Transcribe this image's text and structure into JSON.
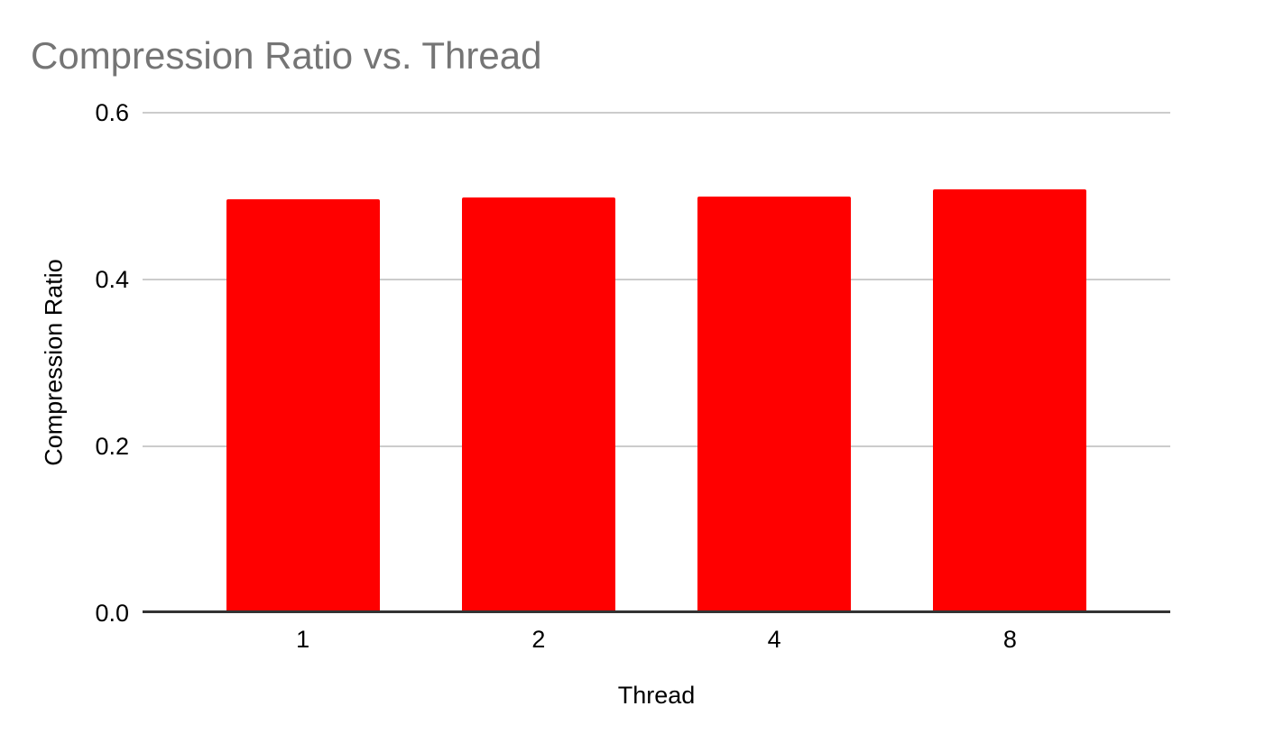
{
  "chart_data": {
    "type": "bar",
    "title": "Compression Ratio vs. Thread",
    "xlabel": "Thread",
    "ylabel": "Compression Ratio",
    "categories": [
      "1",
      "2",
      "4",
      "8"
    ],
    "values": [
      0.496,
      0.498,
      0.5,
      0.508
    ],
    "ylim": [
      0,
      0.6
    ],
    "yticks": [
      0,
      0.2,
      0.4,
      0.6
    ],
    "ytick_labels": [
      "0.0",
      "0.2",
      "0.4",
      "0.6"
    ],
    "grid": true,
    "legend_position": "none",
    "colors": {
      "bar": "#ff0000",
      "title": "#757575",
      "gridline": "#cccccc",
      "axis_line": "#333333",
      "labels": "#000000",
      "background": "#ffffff"
    }
  }
}
